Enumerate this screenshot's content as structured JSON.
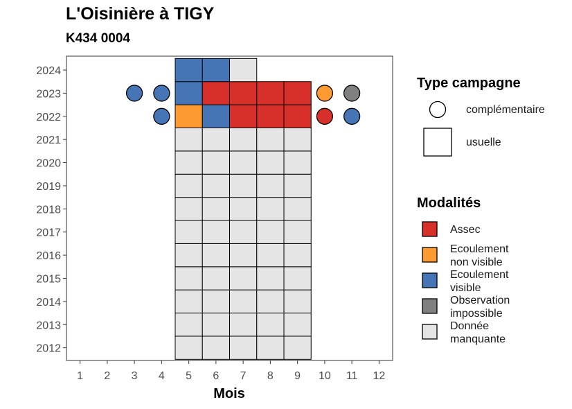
{
  "title": "L'Oisinière à TIGY",
  "subtitle": "K434 0004",
  "chart_data": {
    "type": "heatmap",
    "xlabel": "Mois",
    "ylabel": "",
    "x_ticks": [
      1,
      2,
      3,
      4,
      5,
      6,
      7,
      8,
      9,
      10,
      11,
      12
    ],
    "y_ticks": [
      2012,
      2013,
      2014,
      2015,
      2016,
      2017,
      2018,
      2019,
      2020,
      2021,
      2022,
      2023,
      2024
    ],
    "xlim": [
      0.5,
      12.5
    ],
    "ylim": [
      2011.45,
      2024.6
    ],
    "grid": false,
    "colors": {
      "Assec": "#d7302a",
      "Ecoulement non visible": "#fd9a32",
      "Ecoulement visible": "#4575b4",
      "Observation impossible": "#808080",
      "Donnée manquante": "#e5e5e5"
    },
    "usuelle_cells": [
      {
        "year": 2012,
        "months": [
          5,
          6,
          7,
          8,
          9
        ],
        "modalite": "Donnée manquante"
      },
      {
        "year": 2013,
        "months": [
          5,
          6,
          7,
          8,
          9
        ],
        "modalite": "Donnée manquante"
      },
      {
        "year": 2014,
        "months": [
          5,
          6,
          7,
          8,
          9
        ],
        "modalite": "Donnée manquante"
      },
      {
        "year": 2015,
        "months": [
          5,
          6,
          7,
          8,
          9
        ],
        "modalite": "Donnée manquante"
      },
      {
        "year": 2016,
        "months": [
          5,
          6,
          7,
          8,
          9
        ],
        "modalite": "Donnée manquante"
      },
      {
        "year": 2017,
        "months": [
          5,
          6,
          7,
          8,
          9
        ],
        "modalite": "Donnée manquante"
      },
      {
        "year": 2018,
        "months": [
          5,
          6,
          7,
          8,
          9
        ],
        "modalite": "Donnée manquante"
      },
      {
        "year": 2019,
        "months": [
          5,
          6,
          7,
          8,
          9
        ],
        "modalite": "Donnée manquante"
      },
      {
        "year": 2020,
        "months": [
          5,
          6,
          7,
          8,
          9
        ],
        "modalite": "Donnée manquante"
      },
      {
        "year": 2021,
        "months": [
          5,
          6,
          7,
          8,
          9
        ],
        "modalite": "Donnée manquante"
      },
      {
        "year": 2022,
        "month": 5,
        "modalite": "Ecoulement non visible"
      },
      {
        "year": 2022,
        "month": 6,
        "modalite": "Ecoulement visible"
      },
      {
        "year": 2022,
        "month": 7,
        "modalite": "Assec"
      },
      {
        "year": 2022,
        "month": 8,
        "modalite": "Assec"
      },
      {
        "year": 2022,
        "month": 9,
        "modalite": "Assec"
      },
      {
        "year": 2023,
        "month": 5,
        "modalite": "Ecoulement visible"
      },
      {
        "year": 2023,
        "month": 6,
        "modalite": "Assec"
      },
      {
        "year": 2023,
        "month": 7,
        "modalite": "Assec"
      },
      {
        "year": 2023,
        "month": 8,
        "modalite": "Assec"
      },
      {
        "year": 2023,
        "month": 9,
        "modalite": "Assec"
      },
      {
        "year": 2024,
        "month": 5,
        "modalite": "Ecoulement visible"
      },
      {
        "year": 2024,
        "month": 6,
        "modalite": "Ecoulement visible"
      },
      {
        "year": 2024,
        "month": 7,
        "modalite": "Donnée manquante"
      }
    ],
    "complementaire_points": [
      {
        "year": 2023,
        "month": 3,
        "modalite": "Ecoulement visible"
      },
      {
        "year": 2023,
        "month": 4,
        "modalite": "Ecoulement visible"
      },
      {
        "year": 2022,
        "month": 4,
        "modalite": "Ecoulement visible"
      },
      {
        "year": 2023,
        "month": 10,
        "modalite": "Ecoulement non visible"
      },
      {
        "year": 2023,
        "month": 11,
        "modalite": "Observation impossible"
      },
      {
        "year": 2022,
        "month": 10,
        "modalite": "Assec"
      },
      {
        "year": 2022,
        "month": 11,
        "modalite": "Ecoulement visible"
      }
    ]
  },
  "legend": {
    "placement": "right",
    "type_title": "Type campagne",
    "type_items": [
      {
        "shape": "circle",
        "label": "complémentaire"
      },
      {
        "shape": "square",
        "label": "usuelle"
      }
    ],
    "modalites_title": "Modalités",
    "modalites_items": [
      {
        "key": "Assec",
        "lines": [
          "Assec"
        ]
      },
      {
        "key": "Ecoulement non visible",
        "lines": [
          "Ecoulement",
          "non visible"
        ]
      },
      {
        "key": "Ecoulement visible",
        "lines": [
          "Ecoulement",
          "visible"
        ]
      },
      {
        "key": "Observation impossible",
        "lines": [
          "Observation",
          "impossible"
        ]
      },
      {
        "key": "Donnée manquante",
        "lines": [
          "Donnée",
          "manquante"
        ]
      }
    ]
  }
}
